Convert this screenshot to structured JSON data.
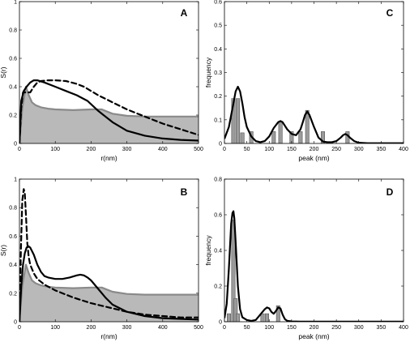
{
  "chart_data": [
    {
      "panel": "A",
      "type": "area",
      "xlabel": "r(nm)",
      "ylabel": "S(r)",
      "xlim": [
        0,
        500
      ],
      "ylim": [
        0,
        1
      ],
      "xticks": [
        "0",
        "100",
        "200",
        "300",
        "400",
        "500"
      ],
      "yticks": [
        "0",
        "0.2",
        "0.4",
        "0.6",
        "0.8",
        "1"
      ],
      "series": [
        {
          "style": "gray-filled-area",
          "color": "#b9b9b9",
          "line_color": "#8a8a8a",
          "x": [
            0,
            8,
            18,
            26,
            35,
            45,
            60,
            80,
            100,
            150,
            200,
            230,
            260,
            300,
            350,
            400,
            450,
            500
          ],
          "y": [
            0,
            0.25,
            0.4,
            0.34,
            0.29,
            0.27,
            0.255,
            0.245,
            0.24,
            0.235,
            0.24,
            0.24,
            0.21,
            0.195,
            0.19,
            0.19,
            0.19,
            0.19
          ]
        },
        {
          "style": "solid",
          "color": "#000000",
          "x": [
            0,
            5,
            12,
            20,
            30,
            40,
            50,
            70,
            100,
            130,
            160,
            190,
            220,
            260,
            300,
            350,
            400,
            450,
            500
          ],
          "y": [
            0,
            0.3,
            0.37,
            0.4,
            0.43,
            0.445,
            0.445,
            0.43,
            0.4,
            0.37,
            0.34,
            0.3,
            0.23,
            0.15,
            0.09,
            0.055,
            0.035,
            0.025,
            0.02
          ]
        },
        {
          "style": "dashed",
          "color": "#000000",
          "x": [
            0,
            5,
            10,
            20,
            30,
            40,
            50,
            60,
            80,
            100,
            130,
            160,
            180,
            220,
            260,
            300,
            350,
            400,
            450,
            500
          ],
          "y": [
            0,
            0.25,
            0.36,
            0.36,
            0.36,
            0.4,
            0.43,
            0.44,
            0.445,
            0.445,
            0.44,
            0.42,
            0.4,
            0.34,
            0.29,
            0.24,
            0.19,
            0.14,
            0.1,
            0.06
          ]
        }
      ]
    },
    {
      "panel": "B",
      "type": "area",
      "xlabel": "r(nm)",
      "ylabel": "S(r)",
      "xlim": [
        0,
        500
      ],
      "ylim": [
        0,
        1
      ],
      "xticks": [
        "0",
        "100",
        "200",
        "300",
        "400",
        "500"
      ],
      "yticks": [
        "0",
        "0.2",
        "0.4",
        "0.6",
        "0.8",
        "1"
      ],
      "series": [
        {
          "style": "gray-filled-area",
          "color": "#b9b9b9",
          "line_color": "#8a8a8a",
          "x": [
            0,
            8,
            18,
            26,
            35,
            45,
            60,
            80,
            100,
            150,
            200,
            230,
            260,
            300,
            350,
            400,
            450,
            500
          ],
          "y": [
            0,
            0.25,
            0.4,
            0.34,
            0.29,
            0.27,
            0.255,
            0.245,
            0.24,
            0.235,
            0.24,
            0.24,
            0.21,
            0.195,
            0.19,
            0.19,
            0.19,
            0.19
          ]
        },
        {
          "style": "solid",
          "color": "#000000",
          "x": [
            0,
            5,
            10,
            15,
            20,
            25,
            30,
            40,
            50,
            60,
            70,
            80,
            100,
            120,
            140,
            160,
            170,
            180,
            190,
            200,
            220,
            240,
            260,
            300,
            350,
            400,
            450,
            500
          ],
          "y": [
            0,
            0.25,
            0.4,
            0.48,
            0.52,
            0.53,
            0.52,
            0.47,
            0.4,
            0.35,
            0.32,
            0.31,
            0.3,
            0.3,
            0.31,
            0.325,
            0.33,
            0.325,
            0.31,
            0.29,
            0.23,
            0.17,
            0.12,
            0.07,
            0.04,
            0.025,
            0.02,
            0.015
          ]
        },
        {
          "style": "dashed",
          "color": "#000000",
          "x": [
            0,
            4,
            8,
            12,
            15,
            18,
            22,
            26,
            30,
            40,
            50,
            70,
            100,
            150,
            200,
            250,
            300,
            350,
            400,
            450,
            500
          ],
          "y": [
            0,
            0.5,
            0.85,
            0.93,
            0.9,
            0.75,
            0.55,
            0.45,
            0.4,
            0.34,
            0.3,
            0.26,
            0.22,
            0.17,
            0.13,
            0.1,
            0.07,
            0.05,
            0.04,
            0.03,
            0.03
          ]
        }
      ]
    },
    {
      "panel": "C",
      "type": "bar",
      "xlabel": "peak (nm)",
      "ylabel": "frequency",
      "xlim": [
        0,
        400
      ],
      "ylim": [
        0,
        0.6
      ],
      "xticks": [
        "0",
        "50",
        "100",
        "150",
        "200",
        "250",
        "300",
        "350",
        "400"
      ],
      "yticks": [
        "0",
        "0.1",
        "0.2",
        "0.3",
        "0.4",
        "0.5",
        "0.6"
      ],
      "bins": [
        {
          "x": 20,
          "value": 0.19
        },
        {
          "x": 30,
          "value": 0.19
        },
        {
          "x": 40,
          "value": 0.045
        },
        {
          "x": 60,
          "value": 0.05
        },
        {
          "x": 110,
          "value": 0.05
        },
        {
          "x": 125,
          "value": 0.095
        },
        {
          "x": 150,
          "value": 0.05
        },
        {
          "x": 170,
          "value": 0.05
        },
        {
          "x": 185,
          "value": 0.14
        },
        {
          "x": 220,
          "value": 0.05
        },
        {
          "x": 275,
          "value": 0.05
        }
      ],
      "curve": {
        "x": [
          0,
          10,
          20,
          25,
          30,
          35,
          40,
          45,
          50,
          60,
          70,
          80,
          90,
          100,
          110,
          120,
          125,
          130,
          140,
          150,
          160,
          170,
          175,
          180,
          185,
          190,
          200,
          210,
          220,
          230,
          240,
          250,
          260,
          265,
          270,
          275,
          280,
          290,
          300,
          320,
          400
        ],
        "y": [
          0.02,
          0.07,
          0.17,
          0.22,
          0.24,
          0.22,
          0.17,
          0.11,
          0.07,
          0.03,
          0.01,
          0.005,
          0.01,
          0.03,
          0.065,
          0.09,
          0.095,
          0.09,
          0.06,
          0.04,
          0.035,
          0.06,
          0.09,
          0.12,
          0.135,
          0.12,
          0.07,
          0.025,
          0.008,
          0.005,
          0.005,
          0.01,
          0.025,
          0.035,
          0.04,
          0.035,
          0.025,
          0.01,
          0.003,
          0.001,
          0.001
        ]
      }
    },
    {
      "panel": "D",
      "type": "bar",
      "xlabel": "peak (nm)",
      "ylabel": "frequency",
      "xlim": [
        0,
        400
      ],
      "ylim": [
        0,
        0.8
      ],
      "xticks": [
        "0",
        "50",
        "100",
        "150",
        "200",
        "250",
        "300",
        "350",
        "400"
      ],
      "yticks": [
        "0",
        "0.2",
        "0.4",
        "0.6",
        "0.8"
      ],
      "bins": [
        {
          "x": 10,
          "value": 0.045
        },
        {
          "x": 20,
          "value": 0.57
        },
        {
          "x": 25,
          "value": 0.13
        },
        {
          "x": 30,
          "value": 0.045
        },
        {
          "x": 85,
          "value": 0.045
        },
        {
          "x": 95,
          "value": 0.045
        },
        {
          "x": 120,
          "value": 0.09
        }
      ],
      "curve": {
        "x": [
          0,
          5,
          10,
          15,
          18,
          20,
          22,
          25,
          30,
          35,
          40,
          50,
          60,
          70,
          80,
          90,
          95,
          100,
          105,
          110,
          115,
          120,
          125,
          130,
          135,
          140,
          150,
          170,
          400
        ],
        "y": [
          0.02,
          0.1,
          0.3,
          0.55,
          0.61,
          0.62,
          0.58,
          0.45,
          0.2,
          0.07,
          0.025,
          0.01,
          0.005,
          0.01,
          0.04,
          0.07,
          0.08,
          0.075,
          0.055,
          0.045,
          0.06,
          0.08,
          0.075,
          0.04,
          0.015,
          0.005,
          0.002,
          0.001,
          0.001
        ]
      }
    }
  ]
}
